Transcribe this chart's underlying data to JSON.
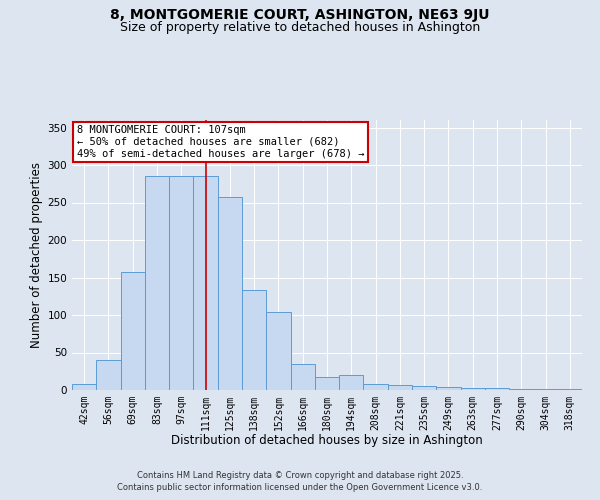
{
  "title": "8, MONTGOMERIE COURT, ASHINGTON, NE63 9JU",
  "subtitle": "Size of property relative to detached houses in Ashington",
  "xlabel": "Distribution of detached houses by size in Ashington",
  "ylabel": "Number of detached properties",
  "categories": [
    "42sqm",
    "56sqm",
    "69sqm",
    "83sqm",
    "97sqm",
    "111sqm",
    "125sqm",
    "138sqm",
    "152sqm",
    "166sqm",
    "180sqm",
    "194sqm",
    "208sqm",
    "221sqm",
    "235sqm",
    "249sqm",
    "263sqm",
    "277sqm",
    "290sqm",
    "304sqm",
    "318sqm"
  ],
  "values": [
    8,
    40,
    158,
    285,
    285,
    285,
    258,
    133,
    104,
    35,
    17,
    20,
    8,
    7,
    5,
    4,
    3,
    3,
    2,
    2,
    1
  ],
  "bar_color": "#c6d9f0",
  "bar_edge_color": "#5b9bd5",
  "bar_edge_width": 0.7,
  "red_line_x": 5,
  "annotation_line1": "8 MONTGOMERIE COURT: 107sqm",
  "annotation_line2": "← 50% of detached houses are smaller (682)",
  "annotation_line3": "49% of semi-detached houses are larger (678) →",
  "annotation_box_color": "#ffffff",
  "annotation_border_color": "#cc0000",
  "ylim": [
    0,
    360
  ],
  "yticks": [
    0,
    50,
    100,
    150,
    200,
    250,
    300,
    350
  ],
  "background_color": "#dde5f0",
  "plot_background_color": "#dde5f0",
  "grid_color": "#ffffff",
  "footer_line1": "Contains HM Land Registry data © Crown copyright and database right 2025.",
  "footer_line2": "Contains public sector information licensed under the Open Government Licence v3.0.",
  "title_fontsize": 10,
  "subtitle_fontsize": 9,
  "xlabel_fontsize": 8.5,
  "ylabel_fontsize": 8.5,
  "tick_fontsize": 7,
  "annotation_fontsize": 7.5,
  "footer_fontsize": 6
}
